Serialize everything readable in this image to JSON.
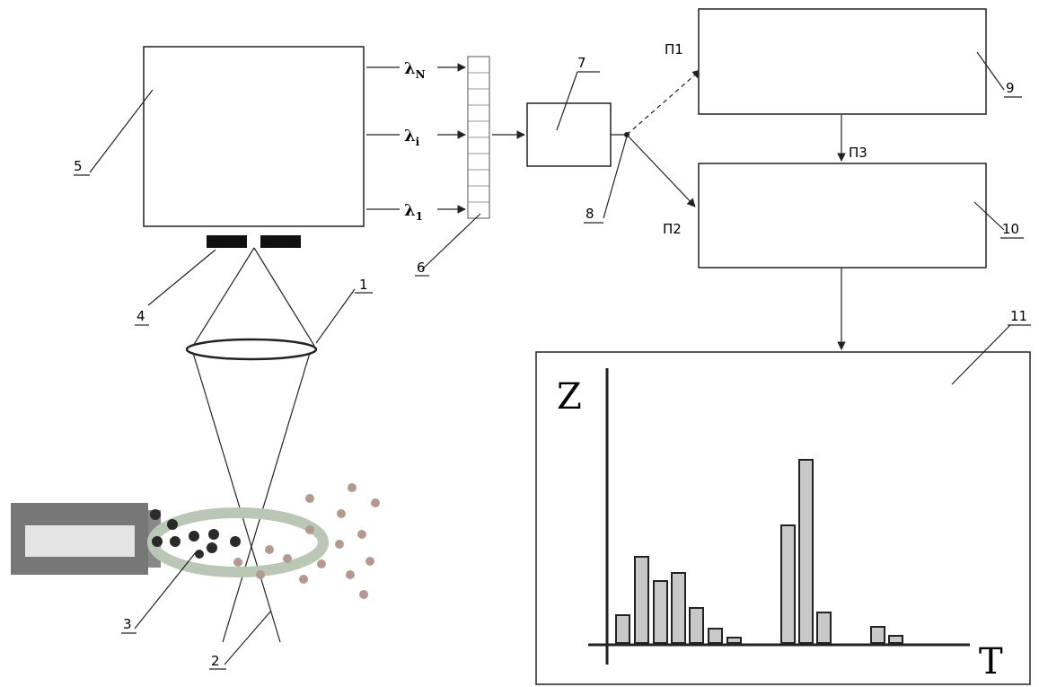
{
  "labels": {
    "n1": "1",
    "n2": "2",
    "n3": "3",
    "n4": "4",
    "n5": "5",
    "n6": "6",
    "n7": "7",
    "n8": "8",
    "n9": "9",
    "n10": "10",
    "n11": "11"
  },
  "wavelengths": [
    {
      "symbol": "λ",
      "subscript": "N"
    },
    {
      "symbol": "λ",
      "subscript": "i"
    },
    {
      "symbol": "λ",
      "subscript": "1"
    }
  ],
  "paths": {
    "p1": "П1",
    "p2": "П2",
    "p3": "П3"
  },
  "plot": {
    "y_axis": "Z",
    "x_axis": "T"
  }
}
